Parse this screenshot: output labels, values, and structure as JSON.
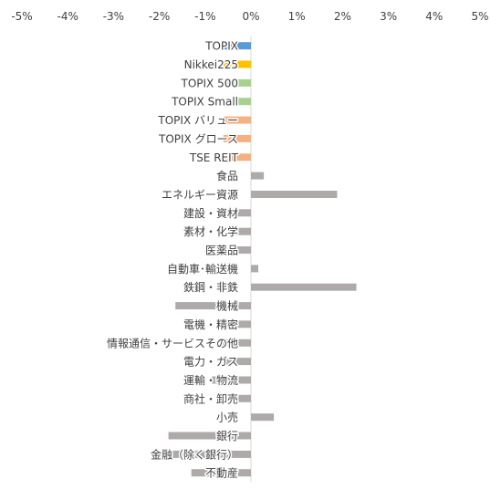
{
  "chart_data": {
    "type": "bar",
    "orientation": "horizontal",
    "title": "",
    "xlabel": "",
    "ylabel": "",
    "xlim": [
      -5,
      5
    ],
    "x_ticks": [
      -5,
      -4,
      -3,
      -2,
      -1,
      0,
      1,
      2,
      3,
      4,
      5
    ],
    "x_tick_labels": [
      "-5%",
      "-4%",
      "-3%",
      "-2%",
      "-1%",
      "0%",
      "1%",
      "2%",
      "3%",
      "4%",
      "5%"
    ],
    "x_axis_position": "top",
    "grid": false,
    "legend": "none",
    "categories": [
      "TOPIX",
      "Nikkei225",
      "TOPIX 500",
      "TOPIX Small",
      "TOPIX バリュー",
      "TOPIX グロース",
      "TSE REIT",
      "食品",
      "エネルギー資源",
      "建設・資材",
      "素材・化学",
      "医薬品",
      "自動車･輸送機",
      "鉄鋼・非鉄",
      "機械",
      "電機・精密",
      "情報通信・サービスその他",
      "電力・ガス",
      "運輸・物流",
      "商社・卸売",
      "小売",
      "銀行",
      "金融（除く銀行）",
      "不動産"
    ],
    "values": [
      -0.6,
      -0.6,
      -0.6,
      -0.3,
      -0.6,
      -0.6,
      -0.6,
      0.28,
      1.88,
      -0.6,
      -0.45,
      -0.3,
      0.16,
      2.3,
      -1.65,
      -0.6,
      -0.65,
      -0.55,
      -0.85,
      -0.6,
      0.5,
      -1.8,
      -1.85,
      -1.3
    ],
    "colors": [
      "#5B9BD5",
      "#FFC000",
      "#A9D18E",
      "#A9D18E",
      "#F4B183",
      "#F4B183",
      "#F4B183",
      "#AEAAAA",
      "#AEAAAA",
      "#AEAAAA",
      "#AEAAAA",
      "#AEAAAA",
      "#AEAAAA",
      "#AEAAAA",
      "#AEAAAA",
      "#AEAAAA",
      "#AEAAAA",
      "#AEAAAA",
      "#AEAAAA",
      "#AEAAAA",
      "#AEAAAA",
      "#AEAAAA",
      "#AEAAAA",
      "#AEAAAA"
    ]
  }
}
